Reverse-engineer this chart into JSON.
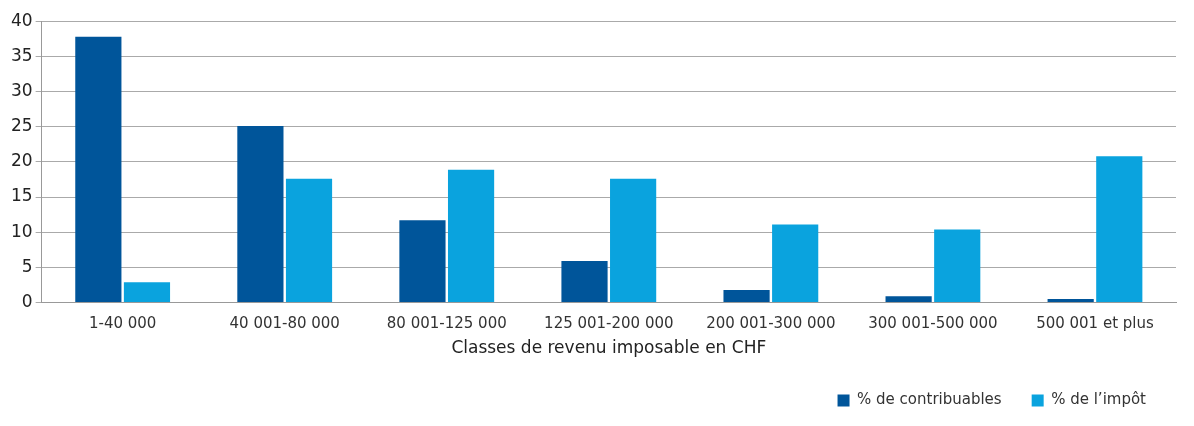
{
  "chart_data": {
    "type": "bar",
    "xlabel": "Classes de revenu imposable en CHF",
    "categories": [
      "1-40 000",
      "40 001-80 000",
      "80 001-125 000",
      "125 001-200 000",
      "200 001-300 000",
      "300 001-500 000",
      "500 001 et plus"
    ],
    "series": [
      {
        "name": "% de contribuables",
        "color": "#00559a",
        "values": [
          37.8,
          25.1,
          11.7,
          5.9,
          1.8,
          0.9,
          0.5
        ]
      },
      {
        "name": "% de l’impôt",
        "color": "#0aa3de",
        "values": [
          2.9,
          17.6,
          18.9,
          17.6,
          11.1,
          10.4,
          20.8
        ]
      }
    ],
    "ylim": [
      0,
      40
    ],
    "yticks": [
      0,
      5,
      10,
      15,
      20,
      25,
      30,
      35,
      40
    ],
    "grid": "y",
    "legend": "bottom right"
  }
}
